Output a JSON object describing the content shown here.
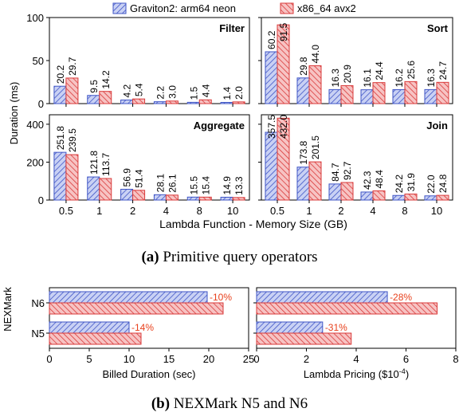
{
  "legend": {
    "arm": "Graviton2: arm64 neon",
    "x86": "x86_64 avx2"
  },
  "colors": {
    "arm_fill": "#c9d1f4",
    "arm_stroke": "#3f55c6",
    "x86_fill": "#f7c3c3",
    "x86_stroke": "#d93a3a",
    "diff_text": "#e8401c"
  },
  "captions": {
    "a_label": "(a)",
    "a_text": "Primitive query operators",
    "b_label": "(b)",
    "b_text": "NEXMark N5 and N6"
  },
  "chart_data": [
    {
      "type": "bar",
      "title": "Filter",
      "categories": [
        "0.5",
        "1",
        "2",
        "4",
        "8",
        "10"
      ],
      "series": [
        {
          "name": "Graviton2: arm64 neon",
          "values": [
            20.2,
            9.5,
            4.2,
            2.2,
            1.5,
            1.4
          ]
        },
        {
          "name": "x86_64 avx2",
          "values": [
            29.7,
            14.2,
            5.4,
            3.0,
            4.4,
            2.0
          ]
        }
      ],
      "ylim": [
        0,
        100
      ],
      "yticks": [
        0,
        50,
        100
      ],
      "ylabel": "Duration (ms)",
      "xlabel": "Lambda Function - Memory Size (GB)"
    },
    {
      "type": "bar",
      "title": "Sort",
      "categories": [
        "0.5",
        "1",
        "2",
        "4",
        "8",
        "10"
      ],
      "series": [
        {
          "name": "Graviton2: arm64 neon",
          "values": [
            60.2,
            29.8,
            16.3,
            16.1,
            16.2,
            16.3
          ]
        },
        {
          "name": "x86_64 avx2",
          "values": [
            91.5,
            44.0,
            20.9,
            24.4,
            25.6,
            24.7
          ]
        }
      ],
      "ylim": [
        0,
        100
      ],
      "yticks": [
        0,
        50,
        100
      ],
      "ylabel": "Duration (ms)",
      "xlabel": "Lambda Function - Memory Size (GB)"
    },
    {
      "type": "bar",
      "title": "Aggregate",
      "categories": [
        "0.5",
        "1",
        "2",
        "4",
        "8",
        "10"
      ],
      "series": [
        {
          "name": "Graviton2: arm64 neon",
          "values": [
            251.8,
            121.8,
            56.9,
            28.1,
            15.5,
            14.9
          ]
        },
        {
          "name": "x86_64 avx2",
          "values": [
            239.5,
            113.7,
            51.4,
            26.1,
            15.4,
            13.3
          ]
        }
      ],
      "ylim": [
        0,
        450
      ],
      "yticks": [
        0,
        200,
        400
      ],
      "ylabel": "Duration (ms)",
      "xlabel": "Lambda Function - Memory Size (GB)"
    },
    {
      "type": "bar",
      "title": "Join",
      "categories": [
        "0.5",
        "1",
        "2",
        "4",
        "8",
        "10"
      ],
      "series": [
        {
          "name": "Graviton2: arm64 neon",
          "values": [
            357.5,
            173.8,
            84.7,
            42.3,
            24.2,
            22.0
          ]
        },
        {
          "name": "x86_64 avx2",
          "values": [
            432.0,
            201.5,
            92.7,
            48.4,
            31.9,
            24.8
          ]
        }
      ],
      "ylim": [
        0,
        450
      ],
      "yticks": [
        0,
        200,
        400
      ],
      "ylabel": "Duration (ms)",
      "xlabel": "Lambda Function - Memory Size (GB)"
    },
    {
      "type": "bar",
      "orientation": "horizontal",
      "categories": [
        "N6",
        "N5"
      ],
      "series": [
        {
          "name": "Graviton2: arm64 neon",
          "values": [
            19.8,
            10.0
          ]
        },
        {
          "name": "x86_64 avx2",
          "values": [
            21.8,
            11.5
          ]
        }
      ],
      "annotations": [
        "-10%",
        "-14%"
      ],
      "xlim": [
        0,
        25
      ],
      "xticks": [
        0,
        5,
        10,
        15,
        20,
        25
      ],
      "xlabel": "Billed Duration (sec)",
      "ylabel": "NEXMark"
    },
    {
      "type": "bar",
      "orientation": "horizontal",
      "categories": [
        "N6",
        "N5"
      ],
      "series": [
        {
          "name": "Graviton2: arm64 neon",
          "values": [
            5.25,
            2.65
          ]
        },
        {
          "name": "x86_64 avx2",
          "values": [
            7.25,
            3.8
          ]
        }
      ],
      "annotations": [
        "-28%",
        "-31%"
      ],
      "xlim": [
        0,
        8
      ],
      "xticks": [
        0,
        2,
        4,
        6,
        8
      ],
      "xlabel": "Lambda Pricing ($10",
      "xlabel_sup": "-4",
      "xlabel_tail": ")",
      "ylabel": "NEXMark"
    }
  ]
}
